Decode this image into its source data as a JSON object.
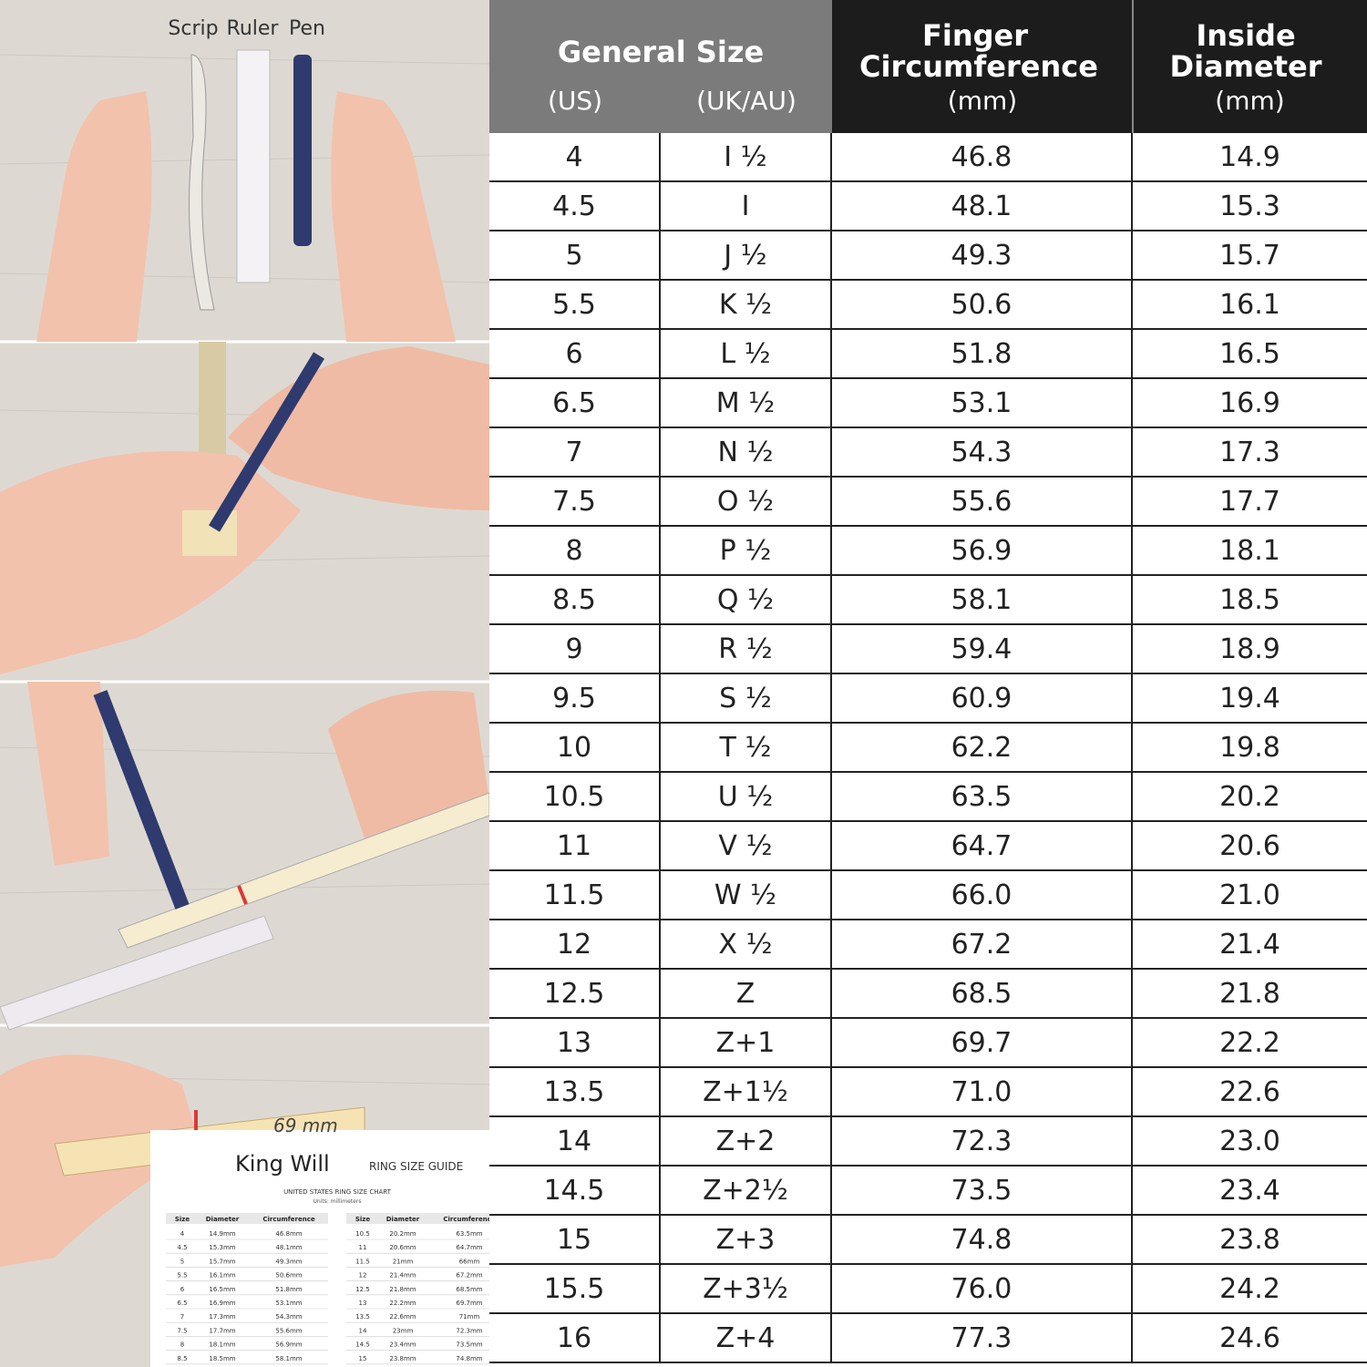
{
  "illustration": {
    "tools": [
      "Scrip",
      "Ruler",
      "Pen"
    ],
    "strip_note": "69 mm",
    "guide": {
      "brand": "King Will",
      "title": "RING SIZE GUIDE",
      "chart_title": "UNITED STATES RING SIZE CHART",
      "units": "Units: millimeters",
      "headers": [
        "Size",
        "Diameter",
        "Circumference"
      ],
      "left_rows": [
        [
          "4",
          "14.9mm",
          "46.8mm"
        ],
        [
          "4.5",
          "15.3mm",
          "48.1mm"
        ],
        [
          "5",
          "15.7mm",
          "49.3mm"
        ],
        [
          "5.5",
          "16.1mm",
          "50.6mm"
        ],
        [
          "6",
          "16.5mm",
          "51.8mm"
        ],
        [
          "6.5",
          "16.9mm",
          "53.1mm"
        ],
        [
          "7",
          "17.3mm",
          "54.3mm"
        ],
        [
          "7.5",
          "17.7mm",
          "55.6mm"
        ],
        [
          "8",
          "18.1mm",
          "56.9mm"
        ],
        [
          "8.5",
          "18.5mm",
          "58.1mm"
        ]
      ],
      "right_rows": [
        [
          "10.5",
          "20.2mm",
          "63.5mm"
        ],
        [
          "11",
          "20.6mm",
          "64.7mm"
        ],
        [
          "11.5",
          "21mm",
          "66mm"
        ],
        [
          "12",
          "21.4mm",
          "67.2mm"
        ],
        [
          "12.5",
          "21.8mm",
          "68.5mm"
        ],
        [
          "13",
          "22.2mm",
          "69.7mm"
        ],
        [
          "13.5",
          "22.6mm",
          "71mm"
        ],
        [
          "14",
          "23mm",
          "72.3mm"
        ],
        [
          "14.5",
          "23.4mm",
          "73.5mm"
        ],
        [
          "15",
          "23.8mm",
          "74.8mm"
        ]
      ]
    }
  },
  "size_table": {
    "header": {
      "general": "General Size",
      "us": "(US)",
      "uk": "(UK/AU)",
      "circ": "Finger Circumference",
      "circ_unit": "(mm)",
      "diam": "Inside Diameter",
      "diam_unit": "(mm)"
    },
    "rows": [
      [
        "4",
        "I ½",
        "46.8",
        "14.9"
      ],
      [
        "4.5",
        "I",
        "48.1",
        "15.3"
      ],
      [
        "5",
        "J ½",
        "49.3",
        "15.7"
      ],
      [
        "5.5",
        "K ½",
        "50.6",
        "16.1"
      ],
      [
        "6",
        "L ½",
        "51.8",
        "16.5"
      ],
      [
        "6.5",
        "M ½",
        "53.1",
        "16.9"
      ],
      [
        "7",
        "N ½",
        "54.3",
        "17.3"
      ],
      [
        "7.5",
        "O ½",
        "55.6",
        "17.7"
      ],
      [
        "8",
        "P ½",
        "56.9",
        "18.1"
      ],
      [
        "8.5",
        "Q ½",
        "58.1",
        "18.5"
      ],
      [
        "9",
        "R ½",
        "59.4",
        "18.9"
      ],
      [
        "9.5",
        "S ½",
        "60.9",
        "19.4"
      ],
      [
        "10",
        "T ½",
        "62.2",
        "19.8"
      ],
      [
        "10.5",
        "U ½",
        "63.5",
        "20.2"
      ],
      [
        "11",
        "V ½",
        "64.7",
        "20.6"
      ],
      [
        "11.5",
        "W ½",
        "66.0",
        "21.0"
      ],
      [
        "12",
        "X ½",
        "67.2",
        "21.4"
      ],
      [
        "12.5",
        "Z",
        "68.5",
        "21.8"
      ],
      [
        "13",
        "Z+1",
        "69.7",
        "22.2"
      ],
      [
        "13.5",
        "Z+1½",
        "71.0",
        "22.6"
      ],
      [
        "14",
        "Z+2",
        "72.3",
        "23.0"
      ],
      [
        "14.5",
        "Z+2½",
        "73.5",
        "23.4"
      ],
      [
        "15",
        "Z+3",
        "74.8",
        "23.8"
      ],
      [
        "15.5",
        "Z+3½",
        "76.0",
        "24.2"
      ],
      [
        "16",
        "Z+4",
        "77.3",
        "24.6"
      ]
    ]
  }
}
